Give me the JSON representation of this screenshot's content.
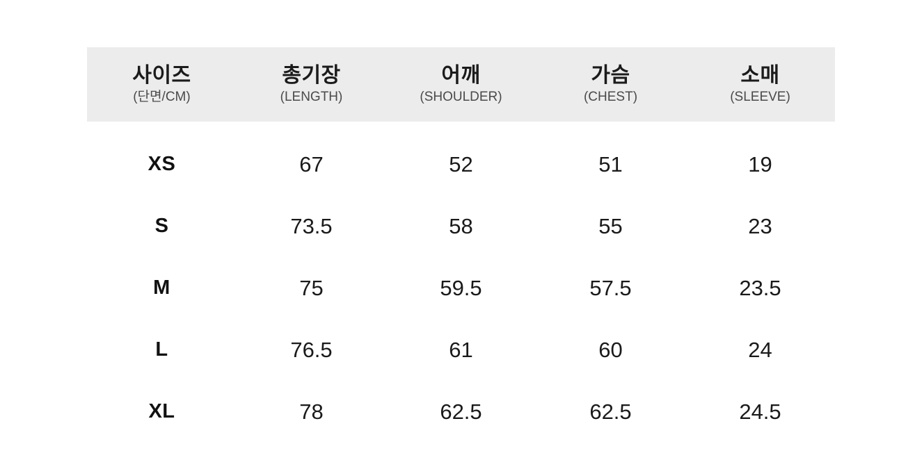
{
  "colors": {
    "header_bg": "#ececec",
    "heading_text": "#1b1b1b",
    "subheading_text": "#4a4a4a",
    "value_text": "#1a1a1a",
    "page_bg": "#ffffff"
  },
  "table": {
    "columns": [
      {
        "ko": "사이즈",
        "sub": "(단면/CM)"
      },
      {
        "ko": "총기장",
        "sub": "(LENGTH)"
      },
      {
        "ko": "어깨",
        "sub": "(SHOULDER)"
      },
      {
        "ko": "가슴",
        "sub": "(CHEST)"
      },
      {
        "ko": "소매",
        "sub": "(SLEEVE)"
      }
    ],
    "rows": [
      {
        "size": "XS",
        "values": [
          "67",
          "52",
          "51",
          "19"
        ]
      },
      {
        "size": "S",
        "values": [
          "73.5",
          "58",
          "55",
          "23"
        ]
      },
      {
        "size": "M",
        "values": [
          "75",
          "59.5",
          "57.5",
          "23.5"
        ]
      },
      {
        "size": "L",
        "values": [
          "76.5",
          "61",
          "60",
          "24"
        ]
      },
      {
        "size": "XL",
        "values": [
          "78",
          "62.5",
          "62.5",
          "24.5"
        ]
      }
    ]
  },
  "chart_data": {
    "type": "table",
    "title": "사이즈 (단면/CM)",
    "columns": [
      "사이즈 (단면/CM)",
      "총기장 (LENGTH)",
      "어깨 (SHOULDER)",
      "가슴 (CHEST)",
      "소매 (SLEEVE)"
    ],
    "rows": [
      [
        "XS",
        67,
        52,
        51,
        19
      ],
      [
        "S",
        73.5,
        58,
        55,
        23
      ],
      [
        "M",
        75,
        59.5,
        57.5,
        23.5
      ],
      [
        "L",
        76.5,
        61,
        60,
        24
      ],
      [
        "XL",
        78,
        62.5,
        62.5,
        24.5
      ]
    ]
  }
}
